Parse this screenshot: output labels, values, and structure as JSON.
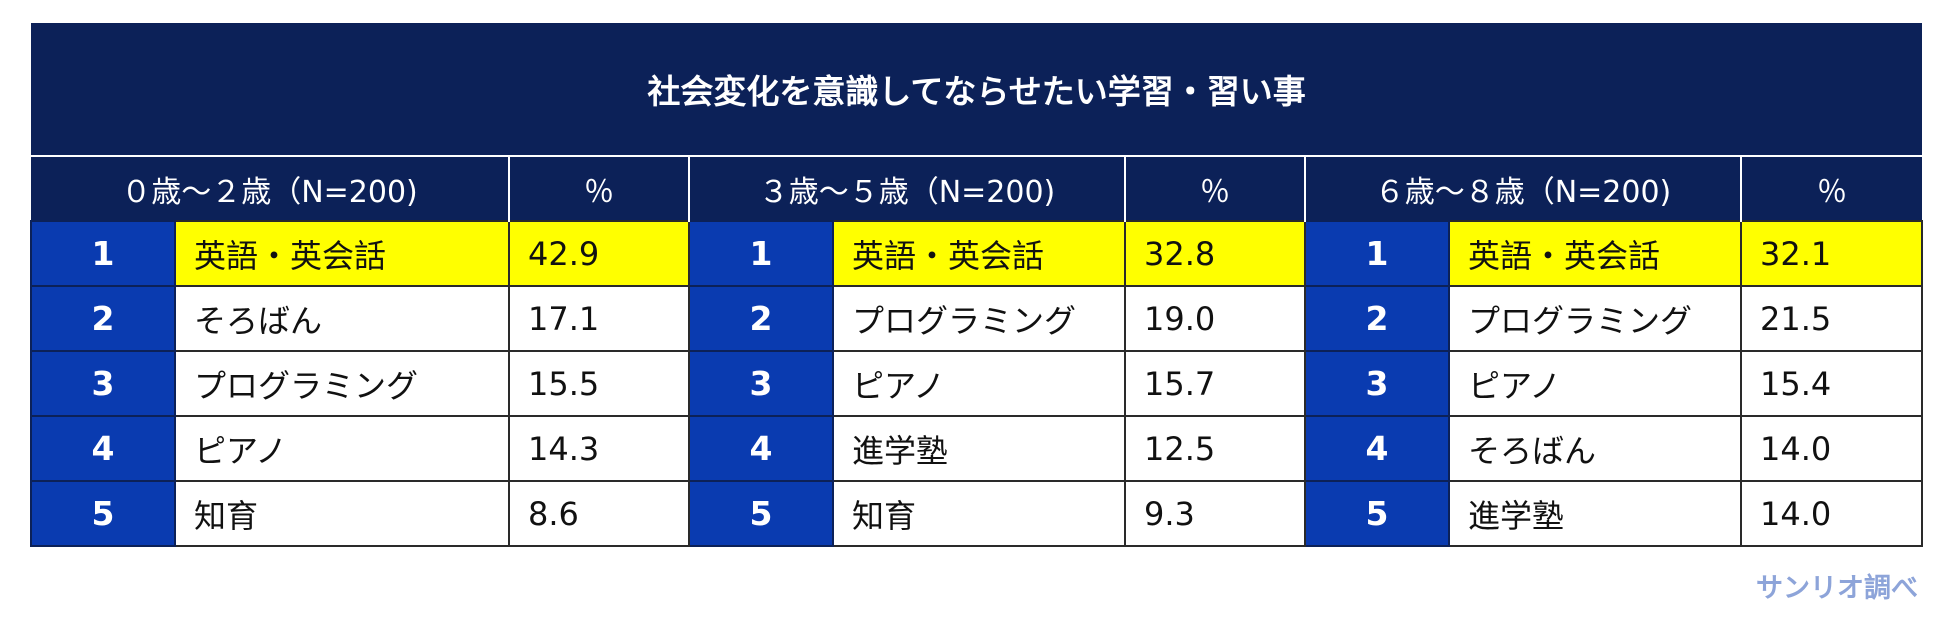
{
  "table": {
    "title": "社会変化を意識してならせたい学習・習い事",
    "groups": [
      {
        "age_label": "０歳～２歳（N=200)",
        "percent_label": "％",
        "rows": [
          {
            "rank": "1",
            "item": "英語・英会話",
            "value": "42.9"
          },
          {
            "rank": "2",
            "item": "そろばん",
            "value": "17.1"
          },
          {
            "rank": "3",
            "item": "プログラミング",
            "value": "15.5"
          },
          {
            "rank": "4",
            "item": "ピアノ",
            "value": "14.3"
          },
          {
            "rank": "5",
            "item": "知育",
            "value": "8.6"
          }
        ]
      },
      {
        "age_label": "３歳～５歳（N=200)",
        "percent_label": "％",
        "rows": [
          {
            "rank": "1",
            "item": "英語・英会話",
            "value": "32.8"
          },
          {
            "rank": "2",
            "item": "プログラミング",
            "value": "19.0"
          },
          {
            "rank": "3",
            "item": "ピアノ",
            "value": "15.7"
          },
          {
            "rank": "4",
            "item": "進学塾",
            "value": "12.5"
          },
          {
            "rank": "5",
            "item": "知育",
            "value": "9.3"
          }
        ]
      },
      {
        "age_label": "６歳～８歳（N=200)",
        "percent_label": "％",
        "rows": [
          {
            "rank": "1",
            "item": "英語・英会話",
            "value": "32.1"
          },
          {
            "rank": "2",
            "item": "プログラミング",
            "value": "21.5"
          },
          {
            "rank": "3",
            "item": "ピアノ",
            "value": "15.4"
          },
          {
            "rank": "4",
            "item": "そろばん",
            "value": "14.0"
          },
          {
            "rank": "5",
            "item": "進学塾",
            "value": "14.0"
          }
        ]
      }
    ]
  },
  "source_note": "サンリオ調べ",
  "colors": {
    "title_background": "#0c2158",
    "rank_background": "#0a3bb0",
    "top_highlight": "#ffff00",
    "source_text": "#8da4d9"
  }
}
